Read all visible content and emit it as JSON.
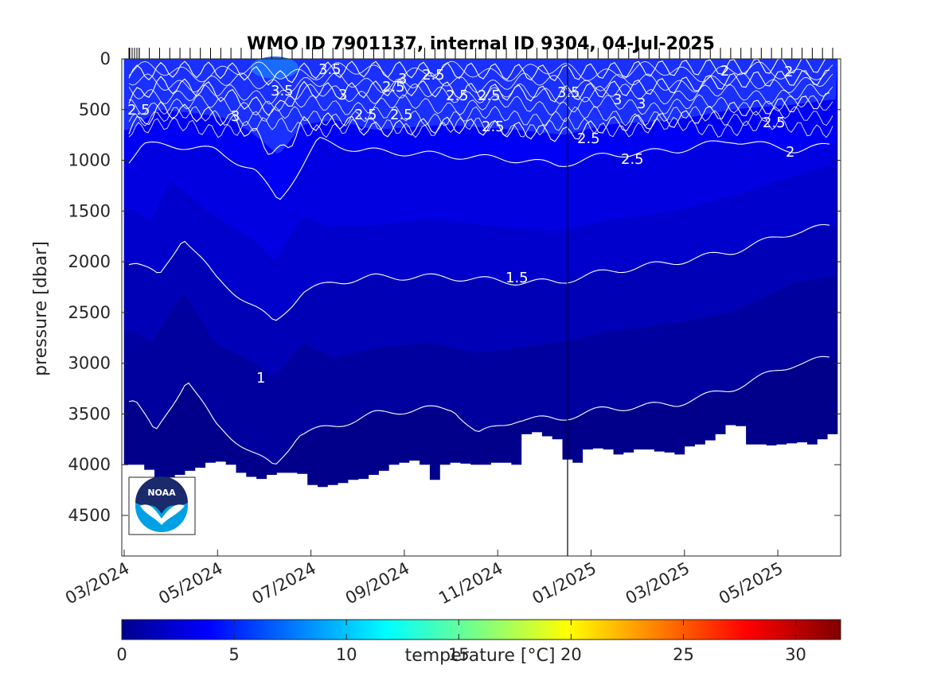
{
  "chart_data": {
    "type": "heatmap",
    "title": "WMO ID 7901137, internal ID 9304, 04-Jul-2025",
    "ylabel": "pressure [dbar]",
    "y_reversed": true,
    "ylim": [
      0,
      4900
    ],
    "y_ticks": [
      0,
      500,
      1000,
      1500,
      2000,
      2500,
      3000,
      3500,
      4000,
      4500
    ],
    "x_ticks": [
      "03/2024",
      "05/2024",
      "07/2024",
      "09/2024",
      "11/2024",
      "01/2025",
      "03/2025",
      "05/2025"
    ],
    "colorbar": {
      "label": "temperature [°C]",
      "range": [
        0,
        32
      ],
      "ticks": [
        0,
        5,
        10,
        15,
        20,
        25,
        30
      ],
      "colormap": "jet"
    },
    "contour_labels": [
      "1",
      "1.5",
      "2",
      "2.5",
      "3",
      "3.5"
    ],
    "contour_levels": [
      1,
      1.5,
      2,
      2.5,
      3,
      3.5
    ],
    "fill_colors": [
      "#00008a",
      "#00009f",
      "#0000b6",
      "#0000cc",
      "#0000e0",
      "#0000f5",
      "#1a30ff"
    ],
    "logo_text": "NOAA",
    "profile_count": 70,
    "bottom_depth": [
      4000,
      4000,
      4050,
      4200,
      4300,
      4100,
      4060,
      4030,
      3980,
      3970,
      4000,
      4080,
      4120,
      4140,
      4100,
      4080,
      4080,
      4090,
      4200,
      4220,
      4200,
      4180,
      4150,
      4140,
      4100,
      4060,
      4000,
      3980,
      3960,
      4000,
      4150,
      4000,
      3980,
      3990,
      4000,
      4000,
      3980,
      3980,
      4000,
      3700,
      3680,
      3720,
      3750,
      3950,
      3980,
      3850,
      3840,
      3850,
      3900,
      3880,
      3850,
      3850,
      3870,
      3880,
      3900,
      3820,
      3800,
      3760,
      3700,
      3610,
      3620,
      3800,
      3800,
      3810,
      3800,
      3790,
      3780,
      3800,
      3750,
      3700
    ]
  }
}
